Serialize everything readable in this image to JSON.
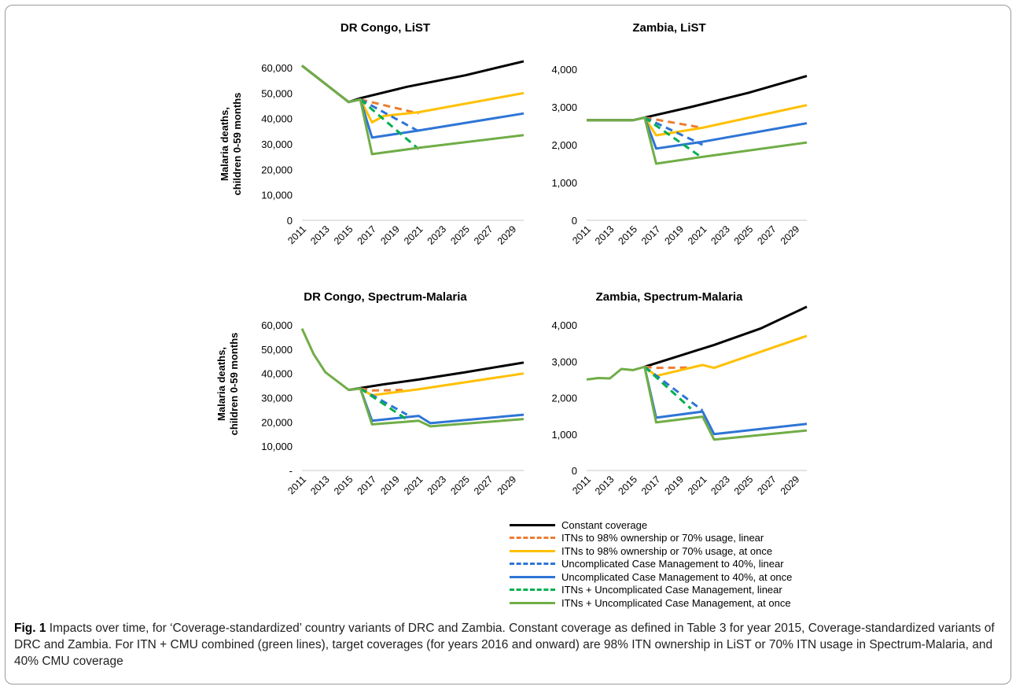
{
  "figure": {
    "label": "Fig. 1",
    "caption": "Impacts over time, for ‘Coverage-standardized’ country variants of DRC and Zambia. Constant coverage as defined in Table 3 for year 2015, Coverage-standardized variants of DRC and Zambia. For ITN + CMU combined (green lines), target coverages (for years 2016 and onward) are 98% ITN ownership in LiST or 70% ITN usage in Spectrum-Malaria, and 40% CMU coverage"
  },
  "legend": {
    "items": [
      {
        "key": "constant",
        "label": "Constant coverage"
      },
      {
        "key": "itn_lin",
        "label": "ITNs to 98% ownership or 70% usage, linear"
      },
      {
        "key": "itn_once",
        "label": "ITNs to 98% ownership or 70% usage, at once"
      },
      {
        "key": "cm_lin",
        "label": "Uncomplicated Case Management to 40%, linear"
      },
      {
        "key": "cm_once",
        "label": "Uncomplicated Case Management to 40%, at once"
      },
      {
        "key": "comb_lin",
        "label": "ITNs + Uncomplicated Case Management, linear"
      },
      {
        "key": "comb_once",
        "label": "ITNs + Uncomplicated Case Management, at once"
      }
    ]
  },
  "series_styles": {
    "constant": {
      "color": "#000000",
      "dash": false
    },
    "itn_lin": {
      "color": "#ED7D31",
      "dash": true
    },
    "itn_once": {
      "color": "#FFC000",
      "dash": false
    },
    "cm_lin": {
      "color": "#2E75D6",
      "dash": true
    },
    "cm_once": {
      "color": "#2E75D6",
      "dash": false
    },
    "comb_lin": {
      "color": "#00B050",
      "dash": true
    },
    "comb_once": {
      "color": "#70AD47",
      "dash": false
    }
  },
  "chart_data": [
    {
      "type": "line",
      "title": "DR Congo,  LiST",
      "ylabel": [
        "Malaria deaths,",
        "children 0-59 months"
      ],
      "xlabel": "",
      "ylim": [
        0,
        60000
      ],
      "yticks": [
        "0",
        "10,000",
        "20,000",
        "30,000",
        "40,000",
        "50,000",
        "60,000"
      ],
      "xticks": [
        "2011",
        "2013",
        "2015",
        "2017",
        "2019",
        "2021",
        "2023",
        "2025",
        "2027",
        "2029"
      ],
      "grid": false,
      "series": [
        {
          "key": "constant",
          "points": [
            [
              2011,
              60800
            ],
            [
              2015,
              46500
            ],
            [
              2016,
              48000
            ],
            [
              2020,
              52500
            ],
            [
              2025,
              57000
            ],
            [
              2030,
              62500
            ]
          ]
        },
        {
          "key": "itn_lin",
          "points": [
            [
              2016,
              47500
            ],
            [
              2021,
              42000
            ]
          ]
        },
        {
          "key": "itn_once",
          "points": [
            [
              2015,
              46500
            ],
            [
              2016,
              47500
            ],
            [
              2017,
              38500
            ],
            [
              2018,
              41000
            ],
            [
              2021,
              42500
            ],
            [
              2030,
              50000
            ]
          ]
        },
        {
          "key": "cm_lin",
          "points": [
            [
              2016,
              47500
            ],
            [
              2021,
              35000
            ]
          ]
        },
        {
          "key": "cm_once",
          "points": [
            [
              2015,
              46500
            ],
            [
              2016,
              47500
            ],
            [
              2017,
              32500
            ],
            [
              2021,
              35300
            ],
            [
              2030,
              42000
            ]
          ]
        },
        {
          "key": "comb_lin",
          "points": [
            [
              2016,
              47500
            ],
            [
              2021,
              28000
            ]
          ]
        },
        {
          "key": "comb_once",
          "points": [
            [
              2011,
              60800
            ],
            [
              2015,
              46500
            ],
            [
              2016,
              47500
            ],
            [
              2017,
              26000
            ],
            [
              2021,
              28500
            ],
            [
              2030,
              33500
            ]
          ]
        }
      ]
    },
    {
      "type": "line",
      "title": "Zambia, LiST",
      "ylabel": [],
      "xlabel": "",
      "ylim": [
        0,
        4000
      ],
      "yticks": [
        "0",
        "1,000",
        "2,000",
        "3,000",
        "4,000"
      ],
      "xticks": [
        "2011",
        "2013",
        "2015",
        "2017",
        "2019",
        "2021",
        "2023",
        "2025",
        "2027",
        "2029"
      ],
      "grid": false,
      "series": [
        {
          "key": "constant",
          "points": [
            [
              2011,
              2650
            ],
            [
              2015,
              2650
            ],
            [
              2016,
              2720
            ],
            [
              2020,
              3000
            ],
            [
              2025,
              3380
            ],
            [
              2030,
              3820
            ]
          ]
        },
        {
          "key": "itn_lin",
          "points": [
            [
              2016,
              2720
            ],
            [
              2021,
              2450
            ]
          ]
        },
        {
          "key": "itn_once",
          "points": [
            [
              2015,
              2650
            ],
            [
              2016,
              2720
            ],
            [
              2017,
              2250
            ],
            [
              2018,
              2300
            ],
            [
              2021,
              2450
            ],
            [
              2030,
              3050
            ]
          ]
        },
        {
          "key": "cm_lin",
          "points": [
            [
              2016,
              2720
            ],
            [
              2021,
              2000
            ]
          ]
        },
        {
          "key": "cm_once",
          "points": [
            [
              2015,
              2650
            ],
            [
              2016,
              2720
            ],
            [
              2017,
              1900
            ],
            [
              2021,
              2080
            ],
            [
              2030,
              2570
            ]
          ]
        },
        {
          "key": "comb_lin",
          "points": [
            [
              2016,
              2720
            ],
            [
              2021,
              1650
            ]
          ]
        },
        {
          "key": "comb_once",
          "points": [
            [
              2011,
              2650
            ],
            [
              2015,
              2650
            ],
            [
              2016,
              2720
            ],
            [
              2017,
              1500
            ],
            [
              2021,
              1680
            ],
            [
              2030,
              2060
            ]
          ]
        }
      ]
    },
    {
      "type": "line",
      "title": "DR Congo, Spectrum-Malaria",
      "ylabel": [
        "Malaria deaths,",
        "children 0-59 months"
      ],
      "xlabel": "",
      "ylim": [
        0,
        60000
      ],
      "yticks": [
        "-",
        "10,000",
        "20,000",
        "30,000",
        "40,000",
        "50,000",
        "60,000"
      ],
      "xticks": [
        "2011",
        "2013",
        "2015",
        "2017",
        "2019",
        "2021",
        "2023",
        "2025",
        "2027",
        "2029"
      ],
      "grid": false,
      "series": [
        {
          "key": "constant",
          "points": [
            [
              2015,
              33200
            ],
            [
              2016,
              34000
            ],
            [
              2018,
              35500
            ],
            [
              2021,
              37500
            ],
            [
              2025,
              40500
            ],
            [
              2030,
              44500
            ]
          ]
        },
        {
          "key": "itn_lin",
          "points": [
            [
              2016,
              33800
            ],
            [
              2017,
              33000
            ],
            [
              2020,
              33200
            ]
          ]
        },
        {
          "key": "itn_once",
          "points": [
            [
              2015,
              33200
            ],
            [
              2016,
              33800
            ],
            [
              2017,
              31000
            ],
            [
              2021,
              33500
            ],
            [
              2030,
              40000
            ]
          ]
        },
        {
          "key": "cm_lin",
          "points": [
            [
              2016,
              33800
            ],
            [
              2020,
              23000
            ]
          ]
        },
        {
          "key": "cm_once",
          "points": [
            [
              2015,
              33200
            ],
            [
              2016,
              33800
            ],
            [
              2017,
              20500
            ],
            [
              2021,
              22500
            ],
            [
              2022,
              19500
            ],
            [
              2030,
              23000
            ]
          ]
        },
        {
          "key": "comb_lin",
          "points": [
            [
              2016,
              33800
            ],
            [
              2020,
              21000
            ]
          ]
        },
        {
          "key": "comb_once",
          "points": [
            [
              2011,
              58500
            ],
            [
              2012,
              48000
            ],
            [
              2013,
              40500
            ],
            [
              2015,
              33200
            ],
            [
              2016,
              33800
            ],
            [
              2017,
              19000
            ],
            [
              2021,
              20500
            ],
            [
              2022,
              18200
            ],
            [
              2030,
              21200
            ]
          ]
        }
      ]
    },
    {
      "type": "line",
      "title": "Zambia, Spectrum-Malaria",
      "ylabel": [],
      "xlabel": "",
      "ylim": [
        0,
        4000
      ],
      "yticks": [
        "0",
        "1,000",
        "2,000",
        "3,000",
        "4,000"
      ],
      "xticks": [
        "2011",
        "2013",
        "2015",
        "2017",
        "2019",
        "2021",
        "2023",
        "2025",
        "2027",
        "2029"
      ],
      "grid": false,
      "series": [
        {
          "key": "constant",
          "points": [
            [
              2016,
              2850
            ],
            [
              2019,
              3150
            ],
            [
              2022,
              3450
            ],
            [
              2026,
              3900
            ],
            [
              2030,
              4500
            ]
          ]
        },
        {
          "key": "itn_lin",
          "points": [
            [
              2016,
              2850
            ],
            [
              2017,
              2820
            ],
            [
              2020,
              2830
            ]
          ]
        },
        {
          "key": "itn_once",
          "points": [
            [
              2016,
              2850
            ],
            [
              2017,
              2600
            ],
            [
              2021,
              2900
            ],
            [
              2022,
              2820
            ],
            [
              2030,
              3700
            ]
          ]
        },
        {
          "key": "cm_lin",
          "points": [
            [
              2016,
              2850
            ],
            [
              2021,
              1650
            ]
          ]
        },
        {
          "key": "cm_once",
          "points": [
            [
              2016,
              2850
            ],
            [
              2017,
              1450
            ],
            [
              2021,
              1620
            ],
            [
              2022,
              1000
            ],
            [
              2030,
              1280
            ]
          ]
        },
        {
          "key": "comb_lin",
          "points": [
            [
              2016,
              2850
            ],
            [
              2020,
              1700
            ]
          ]
        },
        {
          "key": "comb_once",
          "points": [
            [
              2011,
              2500
            ],
            [
              2012,
              2540
            ],
            [
              2013,
              2530
            ],
            [
              2014,
              2790
            ],
            [
              2015,
              2760
            ],
            [
              2016,
              2850
            ],
            [
              2017,
              1320
            ],
            [
              2021,
              1480
            ],
            [
              2022,
              850
            ],
            [
              2030,
              1100
            ]
          ]
        }
      ]
    }
  ]
}
